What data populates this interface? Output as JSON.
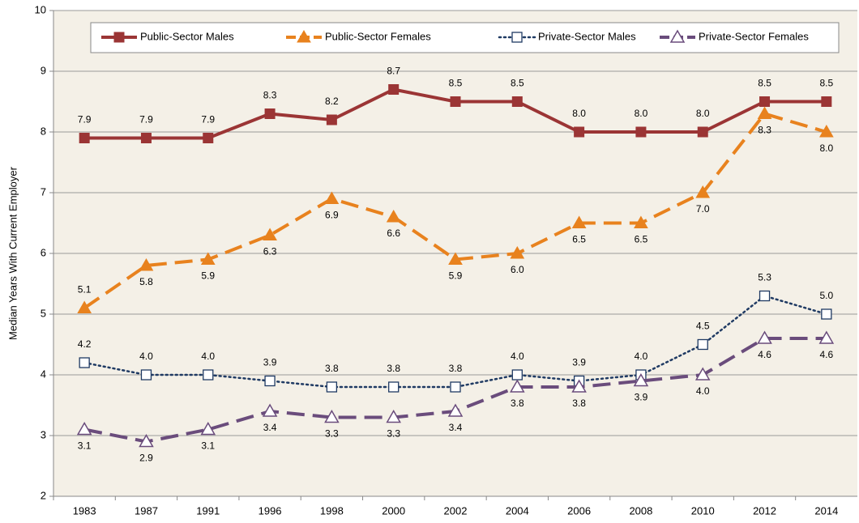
{
  "chart_data": {
    "type": "line",
    "y_label": "Median Years With Current Employer",
    "categories": [
      "1983",
      "1987",
      "1991",
      "1996",
      "1998",
      "2000",
      "2002",
      "2004",
      "2006",
      "2008",
      "2010",
      "2012",
      "2014"
    ],
    "ylim": [
      2,
      10
    ],
    "yticks": [
      2,
      3,
      4,
      5,
      6,
      7,
      8,
      9,
      10
    ],
    "grid": true,
    "legend": "top",
    "series": [
      {
        "name": "Public-Sector Males",
        "color": "#9b3535",
        "marker": "square",
        "line": "solid",
        "values": [
          7.9,
          7.9,
          7.9,
          8.3,
          8.2,
          8.7,
          8.5,
          8.5,
          8.0,
          8.0,
          8.0,
          8.5,
          8.5
        ],
        "value_labels": [
          "7.9",
          "7.9",
          "7.9",
          "8.3",
          "8.2",
          "8.7",
          "8.5",
          "8.5",
          "8.0",
          "8.0",
          "8.0",
          "8.5",
          "8.5"
        ]
      },
      {
        "name": "Public-Sector Females",
        "color": "#e8821e",
        "marker": "triangle",
        "line": "dashed",
        "values": [
          5.1,
          5.8,
          5.9,
          6.3,
          6.9,
          6.6,
          5.9,
          6.0,
          6.5,
          6.5,
          7.0,
          8.3,
          8.0
        ],
        "value_labels": [
          "5.1",
          "5.8",
          "5.9",
          "6.3",
          "6.9",
          "6.6",
          "5.9",
          "6.0",
          "6.5",
          "6.5",
          "7.0",
          "8.3",
          "8.0"
        ]
      },
      {
        "name": "Private-Sector Males",
        "color": "#1f3a63",
        "marker": "hollow-square",
        "line": "dotted",
        "values": [
          4.2,
          4.0,
          4.0,
          3.9,
          3.8,
          3.8,
          3.8,
          4.0,
          3.9,
          4.0,
          4.5,
          5.3,
          5.0
        ],
        "value_labels": [
          "4.2",
          "4.0",
          "4.0",
          "3.9",
          "3.8",
          "3.8",
          "3.8",
          "4.0",
          "3.9",
          "4.0",
          "4.5",
          "5.3",
          "5.0"
        ]
      },
      {
        "name": "Private-Sector Females",
        "color": "#6a4c7c",
        "marker": "hollow-triangle",
        "line": "dashed",
        "values": [
          3.1,
          2.9,
          3.1,
          3.4,
          3.3,
          3.3,
          3.4,
          3.8,
          3.8,
          3.9,
          4.0,
          4.6,
          4.6
        ],
        "value_labels": [
          "3.1",
          "2.9",
          "3.1",
          "3.4",
          "3.3",
          "3.3",
          "3.4",
          "3.8",
          "3.8",
          "3.9",
          "4.0",
          "4.6",
          "4.6"
        ]
      }
    ]
  }
}
